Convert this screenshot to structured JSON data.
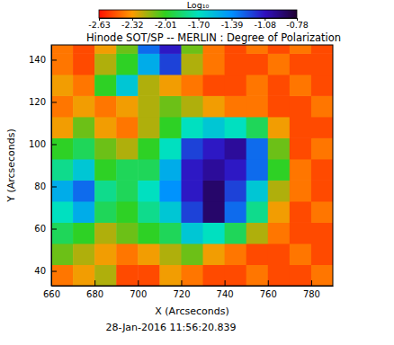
{
  "chart_data": {
    "type": "heatmap",
    "title": "Hinode SOT/SP -- MERLIN : Degree of Polarization",
    "xlabel": "X (Arcseconds)",
    "ylabel": "Y (Arcseconds)",
    "annotation": "28-Jan-2016 11:56:20.839",
    "x": [
      660,
      670,
      680,
      690,
      700,
      710,
      720,
      730,
      740,
      750,
      760,
      770,
      780,
      790
    ],
    "y": [
      33,
      43,
      53,
      63,
      73,
      83,
      93,
      103,
      113,
      123,
      133,
      143,
      147
    ],
    "xlim": [
      660,
      790
    ],
    "ylim": [
      33,
      147
    ],
    "xticks": [
      660,
      680,
      700,
      720,
      740,
      760,
      780
    ],
    "yticks": [
      40,
      60,
      80,
      100,
      120,
      140
    ],
    "cells": [
      [
        -2.4,
        -2.3,
        -2.2,
        -2.5,
        -2.5,
        -2.3,
        -2.4,
        -2.5,
        -2.5,
        -2.4,
        -2.5,
        -2.5,
        -2.4
      ],
      [
        -2.1,
        -2.2,
        -2.3,
        -2.4,
        -2.3,
        -2.2,
        -2.1,
        -2.3,
        -2.4,
        -2.5,
        -2.5,
        -2.4,
        -2.5
      ],
      [
        -1.9,
        -2.0,
        -2.2,
        -2.1,
        -2.0,
        -1.9,
        -1.6,
        -1.7,
        -1.9,
        -2.2,
        -2.4,
        -2.5,
        -2.5
      ],
      [
        -1.7,
        -1.5,
        -1.9,
        -2.0,
        -1.8,
        -1.6,
        -1.2,
        -0.9,
        -1.3,
        -1.8,
        -2.3,
        -2.5,
        -2.4
      ],
      [
        -1.5,
        -1.3,
        -1.8,
        -1.9,
        -1.7,
        -1.4,
        -1.1,
        -0.9,
        -1.2,
        -1.6,
        -2.2,
        -2.4,
        -2.5
      ],
      [
        -1.8,
        -1.6,
        -2.0,
        -1.9,
        -1.9,
        -1.5,
        -1.1,
        -1.0,
        -1.1,
        -1.3,
        -2.0,
        -2.4,
        -2.5
      ],
      [
        -2.0,
        -1.9,
        -2.1,
        -2.2,
        -2.0,
        -1.7,
        -1.2,
        -1.1,
        -1.0,
        -1.3,
        -2.1,
        -2.5,
        -2.4
      ],
      [
        -2.3,
        -2.1,
        -2.3,
        -2.4,
        -2.2,
        -2.0,
        -1.7,
        -1.6,
        -1.7,
        -1.9,
        -2.3,
        -2.5,
        -2.5
      ],
      [
        -2.4,
        -2.3,
        -2.4,
        -2.3,
        -2.2,
        -2.1,
        -2.2,
        -2.3,
        -2.4,
        -2.4,
        -2.5,
        -2.5,
        -2.4
      ],
      [
        -2.3,
        -2.4,
        -2.0,
        -1.6,
        -2.2,
        -2.3,
        -2.4,
        -2.5,
        -2.5,
        -2.4,
        -2.5,
        -2.4,
        -2.5
      ],
      [
        -2.4,
        -2.5,
        -2.2,
        -2.0,
        -1.5,
        -1.2,
        -2.2,
        -2.4,
        -2.5,
        -2.5,
        -2.4,
        -2.5,
        -2.5
      ],
      [
        -2.4,
        -2.5,
        -2.3,
        -2.1,
        -1.3,
        -1.1,
        -2.1,
        -2.4,
        -2.5,
        -2.4,
        -2.5,
        -2.4,
        -2.5
      ]
    ],
    "colorbar": {
      "label": "Log₁₀",
      "range": [
        -2.63,
        -0.78
      ],
      "ticks": [
        -2.63,
        -2.32,
        -2.01,
        {
          "value": -1.7,
          "label": "-1.70"
        },
        -1.39,
        -1.08,
        -0.78
      ]
    }
  }
}
